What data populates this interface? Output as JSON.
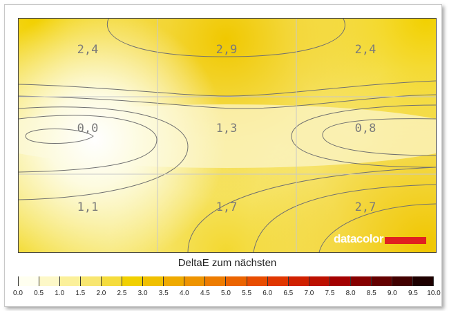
{
  "chart_data": {
    "type": "heatmap",
    "title": "DeltaE zum nächsten",
    "grid": true,
    "rows": 3,
    "cols": 3,
    "values": [
      [
        "2,4",
        "2,9",
        "2,4"
      ],
      [
        "0,0",
        "1,3",
        "0,8"
      ],
      [
        "1,1",
        "1,7",
        "2,7"
      ]
    ],
    "numeric_values": [
      [
        2.4,
        2.9,
        2.4
      ],
      [
        0.0,
        1.3,
        0.8
      ],
      [
        1.1,
        1.7,
        2.7
      ]
    ],
    "colorbar": {
      "min": 0.0,
      "max": 10.0,
      "ticks": [
        "0.0",
        "0.5",
        "1.0",
        "1.5",
        "2.0",
        "2.5",
        "3.0",
        "3.5",
        "4.0",
        "4.5",
        "5.0",
        "5.5",
        "6.0",
        "6.5",
        "7.0",
        "7.5",
        "8.0",
        "8.5",
        "9.0",
        "9.5",
        "10.0"
      ],
      "colors": [
        "#fffff0",
        "#fdf8c8",
        "#fbf09a",
        "#f8e670",
        "#f5dc3c",
        "#f1d000",
        "#f0c000",
        "#efaa00",
        "#ee9400",
        "#ed7c00",
        "#eb6400",
        "#e84c00",
        "#e03600",
        "#d02000",
        "#bc1000",
        "#a40000",
        "#860000",
        "#640000",
        "#420000",
        "#1e0000"
      ]
    }
  },
  "logo": {
    "text": "datacolor"
  }
}
